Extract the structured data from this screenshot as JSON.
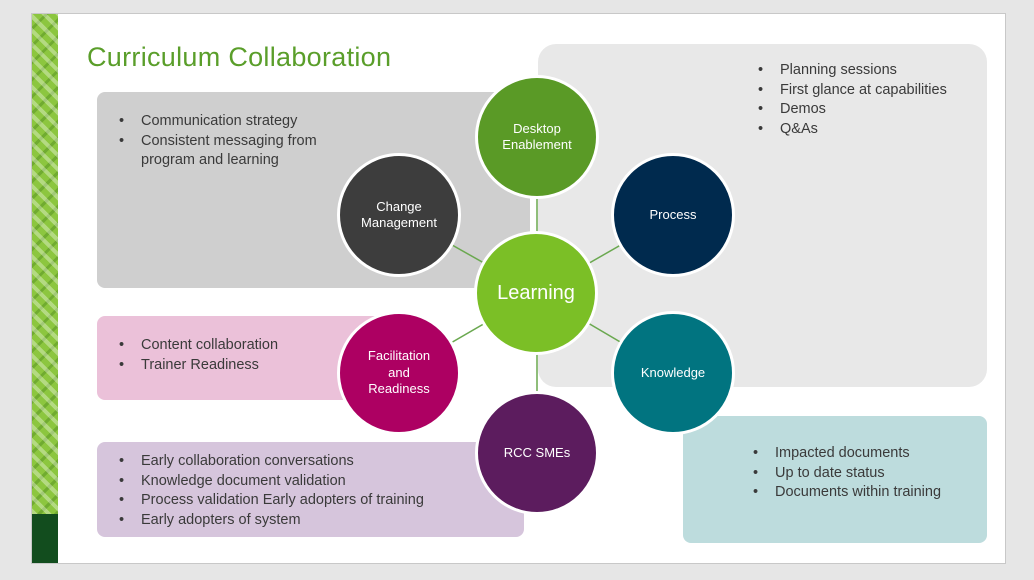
{
  "slide": {
    "title": "Curriculum Collaboration"
  },
  "hub": {
    "label": "Learning",
    "color": "#7bbf26"
  },
  "nodes": {
    "desktop": {
      "label": "Desktop Enablement",
      "color": "#5a9a26"
    },
    "process": {
      "label": "Process",
      "color": "#002a4e"
    },
    "knowledge": {
      "label": "Knowledge",
      "color": "#017480"
    },
    "rcc": {
      "label": "RCC SMEs",
      "color": "#5c1c5e"
    },
    "facilitation": {
      "label": "Facilitation and Readiness",
      "color": "#ad0062"
    },
    "change": {
      "label": "Change Management",
      "color": "#3d3d3d"
    }
  },
  "boxes": {
    "change": [
      "Communication strategy",
      "Consistent messaging from program and learning"
    ],
    "desktop": [
      "Planning sessions",
      "First glance at capabilities",
      "Demos",
      "Q&As"
    ],
    "facilitation": [
      "Content collaboration",
      "Trainer Readiness"
    ],
    "rcc": [
      "Early collaboration conversations",
      "Knowledge document validation",
      "Process validation Early adopters of training",
      "Early adopters of system"
    ],
    "knowledge": [
      "Impacted documents",
      "Up to date status",
      "Documents within training"
    ]
  },
  "colors": {
    "title": "#5a9e2a",
    "connector": "#6aa84f",
    "accent_strip": "#8cc63f",
    "accent_dark": "#124d1e"
  }
}
